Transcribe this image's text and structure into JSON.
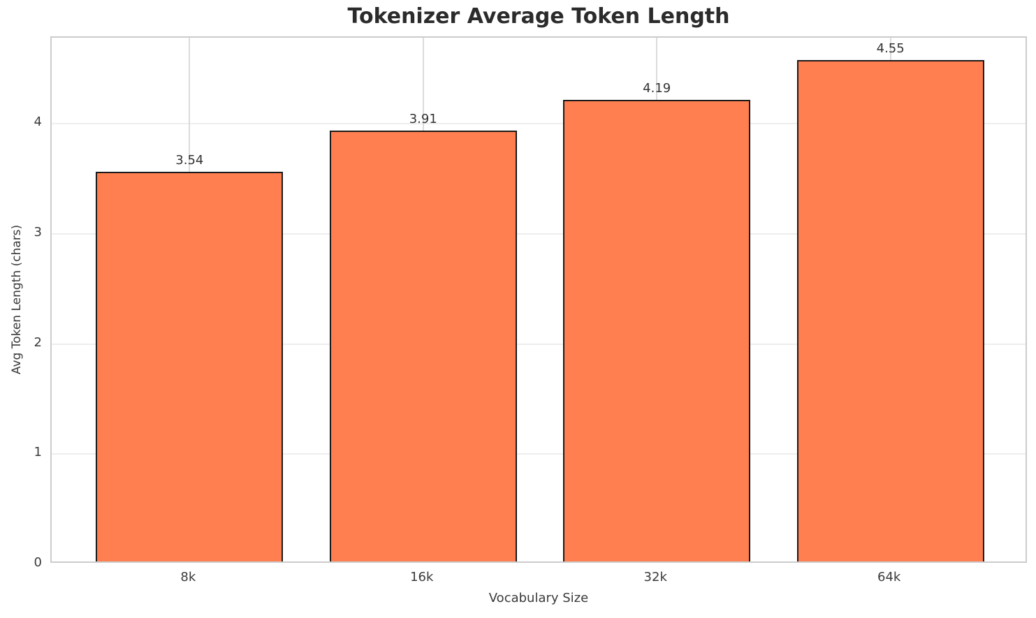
{
  "chart_data": {
    "type": "bar",
    "title": "Tokenizer Average Token Length",
    "xlabel": "Vocabulary Size",
    "ylabel": "Avg Token Length (chars)",
    "categories": [
      "8k",
      "16k",
      "32k",
      "64k"
    ],
    "values": [
      3.54,
      3.91,
      4.19,
      4.55
    ],
    "bar_labels": [
      "3.54",
      "3.91",
      "4.19",
      "4.55"
    ],
    "yticks": [
      0,
      1,
      2,
      3,
      4
    ],
    "ytick_labels": [
      "0",
      "1",
      "2",
      "3",
      "4"
    ],
    "ylim": [
      0,
      4.78
    ],
    "xlim": [
      -0.59,
      3.59
    ],
    "bar_width_units": 0.8,
    "grid": true,
    "legend": false,
    "colors": {
      "bar_fill": "#FF7F50",
      "bar_edge": "#1a1a1a",
      "title_text": "#2b2b2b",
      "axis_text": "#3a3a3a",
      "spine": "#cccccc",
      "grid_h": "#eeeeee",
      "grid_v": "#dbdbdb",
      "background": "#ffffff"
    }
  }
}
